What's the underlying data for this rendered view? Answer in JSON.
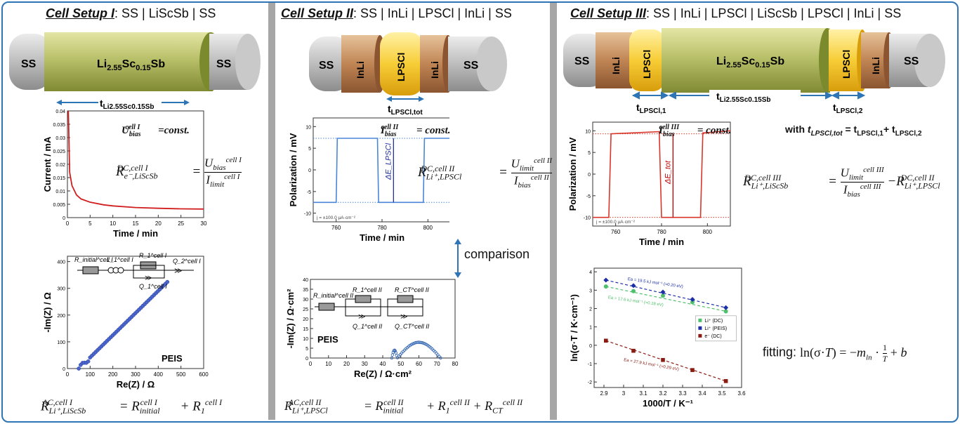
{
  "setup1": {
    "title": "Cell Setup I",
    "config": ": SS | LiScSb | SS",
    "cylinder": {
      "left": "SS",
      "right": "SS",
      "center": "Li2.55Sc0.15Sb"
    },
    "thickness": "tLi2.55Sc0.15Sb",
    "chart": {
      "ylabel": "Current / mA",
      "xlabel": "Time / min",
      "yticks": [
        "0.04",
        "0.035",
        "0.03",
        "0.025",
        "0.02",
        "0.015",
        "0.01",
        "0.005",
        "0"
      ],
      "xticks": [
        "0",
        "5",
        "10",
        "15",
        "20",
        "25",
        "30"
      ]
    },
    "bias": "U_bias^cell I = const.",
    "formula_dc": "R_e−,LiScSb^DC,cell I = U_bias^cell I / I_limit^cell I",
    "peis": {
      "ylabel": "-Im(Z) / Ω",
      "xlabel": "Re(Z) / Ω",
      "yticks": [
        "400",
        "300",
        "200",
        "100",
        "0"
      ],
      "xticks": [
        "0",
        "100",
        "200",
        "300",
        "400",
        "500",
        "600"
      ],
      "tag": "PEIS",
      "circuit": [
        "R_initial^cell I",
        "L_1^cell I",
        "R_1^cell I",
        "Q_2^cell I",
        "Q_1^cell I"
      ]
    },
    "formula_ac": "R_Li+,LiScSb^AC,cell I = R_initial^cell I + R_1^cell I"
  },
  "setup2": {
    "title": "Cell Setup II",
    "config": ": SS | InLi | LPSCl | InLi | SS",
    "cylinder": [
      "SS",
      "InLi",
      "LPSCl",
      "InLi",
      "SS"
    ],
    "thickness": "tLPSCl,tot",
    "chart": {
      "ylabel": "Polarization / mV",
      "xlabel": "Time / min",
      "yticks": [
        "10",
        "5",
        "0",
        "-5",
        "-10"
      ],
      "xticks": [
        "760",
        "780",
        "800"
      ],
      "current": "j = ±100.0 µA·cm⁻²",
      "delta": "ΔE_LPSCl"
    },
    "bias": "I_bias^cell II = const.",
    "formula_dc": "R_Li+,LPSCl^DC,cell II = U_limit^cell II / I_bias^cell II",
    "comparison": "comparison",
    "peis": {
      "ylabel": "-Im(Z) / Ω·cm²",
      "xlabel": "Re(Z) / Ω·cm²",
      "yticks": [
        "40",
        "35",
        "30",
        "25",
        "20",
        "15",
        "10",
        "5",
        "0"
      ],
      "xticks": [
        "0",
        "10",
        "20",
        "30",
        "40",
        "50",
        "60",
        "70",
        "80"
      ],
      "tag": "PEIS",
      "circuit": [
        "R_initial^cell II",
        "R_1^cell II",
        "R_CT^cell II",
        "Q_1^cell II",
        "Q_CT^cell II"
      ]
    },
    "formula_ac": "R_Li+,LPSCl^AC,cell II = R_initial^cell II + R_1^cell II + R_CT^cell II"
  },
  "setup3": {
    "title": "Cell Setup III",
    "config": ": SS | InLi | LPSCl | LiScSb | LPSCl | InLi | SS",
    "cylinder": [
      "SS",
      "InLi",
      "LPSCl",
      "Li2.55Sc0.15Sb",
      "LPSCl",
      "InLi",
      "SS"
    ],
    "thicknesses": [
      "tLPSCl,1",
      "tLi2.55Sc0.15Sb",
      "tLPSCl,2"
    ],
    "sum_note": "with tLPSCl,tot = tLPSCl,1 + tLPSCl,2",
    "chart": {
      "ylabel": "Polarization / mV",
      "xlabel": "Time / min",
      "yticks": [
        "10",
        "5",
        "0",
        "-5",
        "-10"
      ],
      "xticks": [
        "760",
        "780",
        "800"
      ],
      "current": "j = ±100.0 µA·cm⁻²",
      "delta": "ΔE_tot"
    },
    "bias": "I_bias^cell III = const.",
    "formula_dc": "R_Li+,LiScSb^DC,cell III = U_limit^cell III / I_bias^cell III − R_Li+,LPSCl^DC,cell II",
    "arrhenius": {
      "ylabel": "ln(σ·T / K·cm⁻¹)",
      "xlabel": "1000/T / K⁻¹",
      "yticks": [
        "4",
        "3",
        "2",
        "1",
        "0",
        "-1",
        "-2"
      ],
      "xticks": [
        "2.9",
        "3",
        "3.1",
        "3.2",
        "3.3",
        "3.4",
        "3.5",
        "3.6"
      ],
      "legend": [
        "Li⁺ (DC)",
        "Li⁺ (PEIS)",
        "e⁻ (DC)"
      ],
      "annotations": [
        "Ea = 19.5 kJ mol⁻¹ (≈0.20 eV)",
        "Ea = 17.6 kJ mol⁻¹ (≈0.18 eV)",
        "Ea = 27.9 kJ mol⁻¹ (≈0.29 eV)"
      ]
    },
    "fitting": "fitting: ln(σ·T) = −m_ln · 1/T + b"
  },
  "chart_data": [
    {
      "type": "line",
      "xlabel": "Time / min",
      "ylabel": "Current / mA",
      "xlim": [
        0,
        30
      ],
      "ylim": [
        0,
        0.04
      ],
      "series": [
        {
          "x": [
            0.2,
            0.5,
            1,
            2,
            3,
            5,
            8,
            10,
            15,
            20,
            25,
            30
          ],
          "y": [
            0.04,
            0.017,
            0.012,
            0.0085,
            0.007,
            0.0058,
            0.0048,
            0.0044,
            0.0038,
            0.0035,
            0.0033,
            0.0032
          ]
        }
      ]
    },
    {
      "type": "line",
      "xlabel": "Time / min",
      "ylabel": "Polarization / mV",
      "xlim": [
        750,
        810
      ],
      "ylim": [
        -12,
        12
      ],
      "series": [
        {
          "x": [
            750,
            760,
            760.5,
            778,
            778.5,
            798,
            798.5,
            810
          ],
          "y": [
            -7.5,
            -7.5,
            7.3,
            7.3,
            -7.5,
            -7.5,
            7.3,
            7.3
          ]
        }
      ]
    },
    {
      "type": "line",
      "xlabel": "Time / min",
      "ylabel": "Polarization / mV",
      "xlim": [
        750,
        810
      ],
      "ylim": [
        -12,
        12
      ],
      "series": [
        {
          "x": [
            750,
            757,
            758,
            779,
            780,
            797,
            798,
            810
          ],
          "y": [
            -10,
            -10,
            9.3,
            9.8,
            -10,
            -10,
            9.5,
            10
          ]
        }
      ]
    },
    {
      "type": "scatter",
      "xlabel": "1000/T / K⁻¹",
      "ylabel": "ln(σ·T / K·cm⁻¹)",
      "xlim": [
        2.85,
        3.6
      ],
      "ylim": [
        -2.3,
        4.2
      ],
      "series": [
        {
          "name": "Li⁺ (DC)",
          "x": [
            2.91,
            3.05,
            3.2,
            3.35,
            3.52
          ],
          "y": [
            3.2,
            2.95,
            2.7,
            2.35,
            1.85
          ]
        },
        {
          "name": "Li⁺ (PEIS)",
          "x": [
            2.91,
            3.05,
            3.2,
            3.35,
            3.52
          ],
          "y": [
            3.55,
            3.25,
            2.9,
            2.5,
            2.05
          ]
        },
        {
          "name": "e⁻ (DC)",
          "x": [
            2.91,
            3.05,
            3.2,
            3.35,
            3.52
          ],
          "y": [
            0.25,
            -0.3,
            -0.8,
            -1.35,
            -1.95
          ]
        }
      ]
    }
  ]
}
